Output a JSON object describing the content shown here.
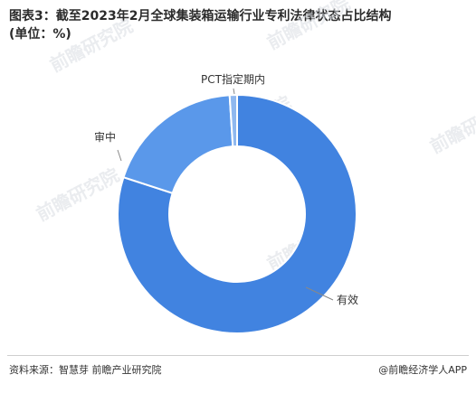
{
  "title_line1": "图表3：截至2023年2月全球集装箱运输行业专利法律状态占比结构",
  "title_line2": "(单位：%)",
  "chart_data": {
    "type": "pie",
    "categories": [
      "有效",
      "审中",
      "PCT指定期内"
    ],
    "values": [
      80,
      19,
      1
    ],
    "colors": [
      "#4183e0",
      "#5a98ea",
      "#8fb8ef"
    ],
    "donut": true
  },
  "source_text": "资料来源：智慧芽 前瞻产业研究院",
  "publisher_text": "@前瞻经济学人APP",
  "watermark_text": "前瞻研究院"
}
